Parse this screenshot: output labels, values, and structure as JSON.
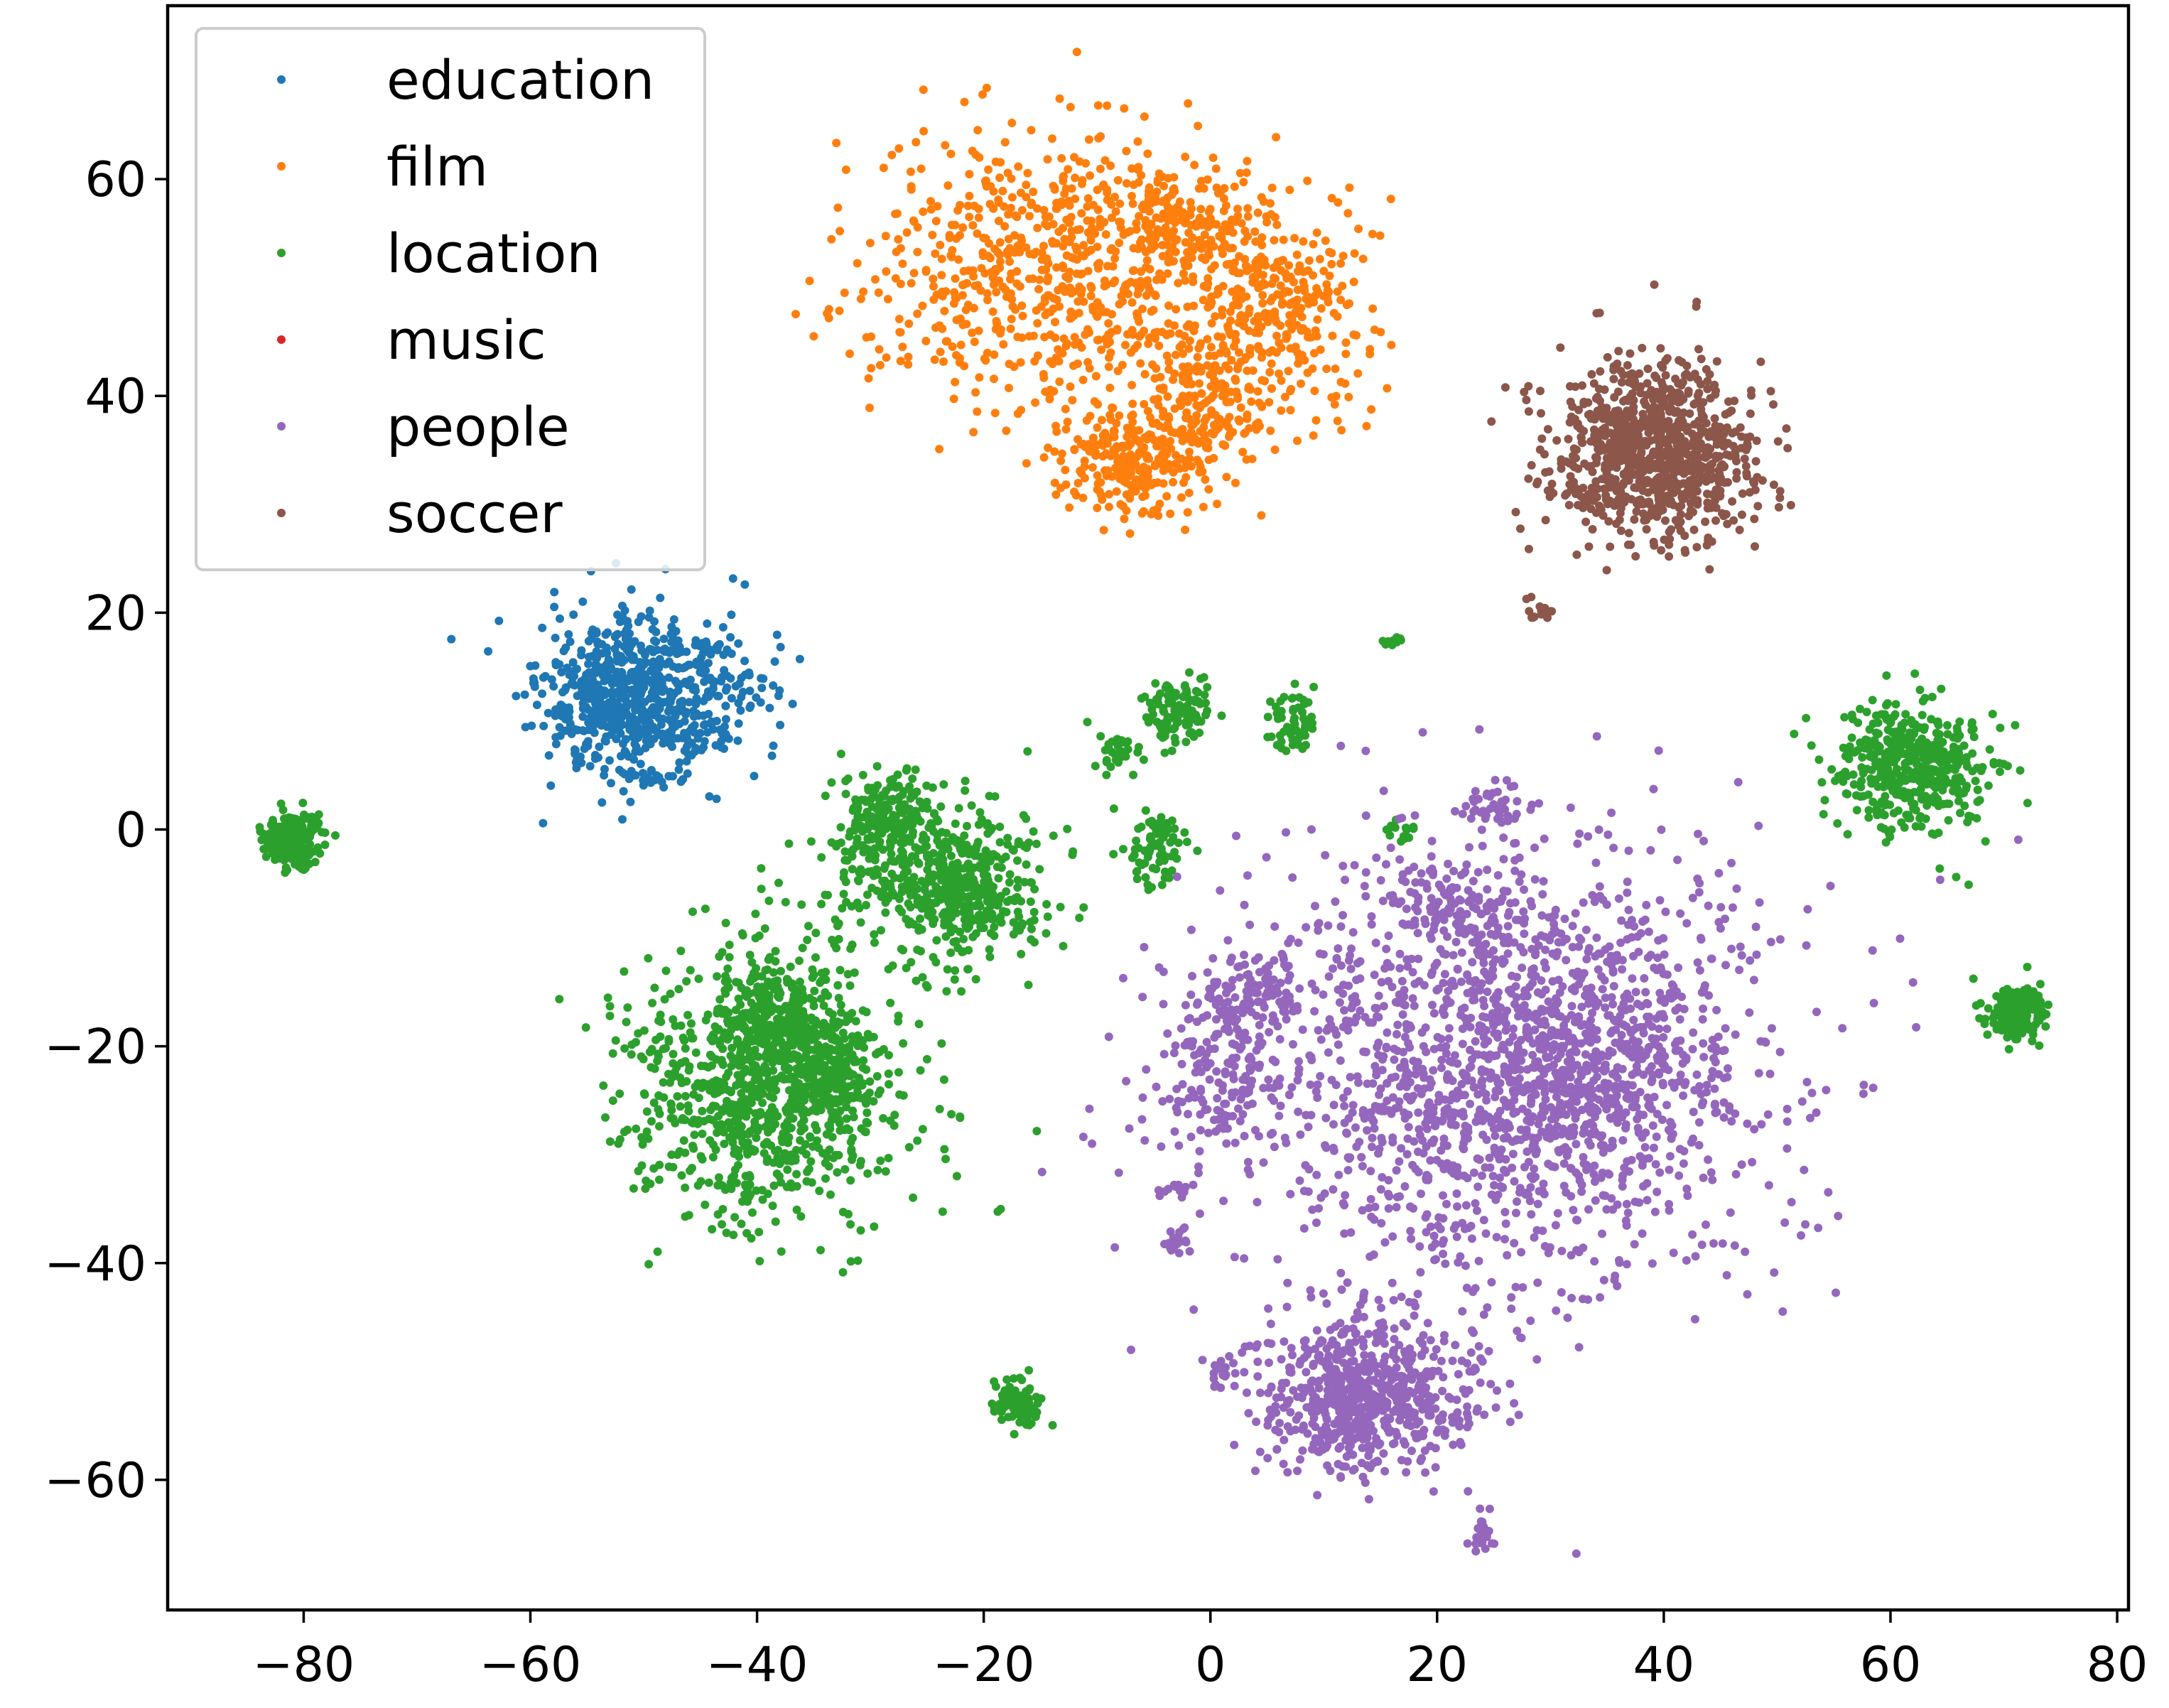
{
  "chart_data": {
    "type": "scatter",
    "title": "",
    "xlabel": "",
    "ylabel": "",
    "xlim": [
      -92,
      81
    ],
    "ylim": [
      -72,
      76
    ],
    "xticks": [
      -80,
      -60,
      -40,
      -20,
      0,
      20,
      40,
      60,
      80
    ],
    "yticks": [
      -60,
      -40,
      -20,
      0,
      20,
      40,
      60
    ],
    "xtick_labels": [
      "−80",
      "−60",
      "−40",
      "−20",
      "0",
      "20",
      "40",
      "60",
      "80"
    ],
    "ytick_labels": [
      "−60",
      "−40",
      "−20",
      "0",
      "20",
      "40",
      "60"
    ],
    "grid": false,
    "legend_position": "top-left",
    "series": [
      {
        "name": "education",
        "color": "#1f77b4",
        "clusters": [
          {
            "cx": -51,
            "cy": 12,
            "sx": 4.0,
            "sy": 3.8,
            "n": 700
          },
          {
            "cx": -42,
            "cy": 13,
            "sx": 2.5,
            "sy": 2.5,
            "n": 60
          }
        ]
      },
      {
        "name": "film",
        "color": "#ff7f0e",
        "clusters": [
          {
            "cx": -14,
            "cy": 52,
            "sx": 8.0,
            "sy": 7.0,
            "n": 700
          },
          {
            "cx": -3,
            "cy": 56,
            "sx": 3.0,
            "sy": 3.0,
            "n": 150
          },
          {
            "cx": 6,
            "cy": 49,
            "sx": 4.0,
            "sy": 5.0,
            "n": 300
          },
          {
            "cx": -7,
            "cy": 34,
            "sx": 3.0,
            "sy": 2.5,
            "n": 250
          },
          {
            "cx": 0,
            "cy": 40,
            "sx": 3.5,
            "sy": 4.0,
            "n": 200
          }
        ]
      },
      {
        "name": "location",
        "color": "#2ca02c",
        "clusters": [
          {
            "cx": -81,
            "cy": -1,
            "sx": 1.3,
            "sy": 1.3,
            "n": 200
          },
          {
            "cx": -39,
            "cy": -24,
            "sx": 6.0,
            "sy": 6.0,
            "n": 900
          },
          {
            "cx": -39,
            "cy": -17,
            "sx": 2.5,
            "sy": 2.5,
            "n": 200
          },
          {
            "cx": -34,
            "cy": -22,
            "sx": 2.0,
            "sy": 2.0,
            "n": 150
          },
          {
            "cx": -24,
            "cy": -4,
            "sx": 5.0,
            "sy": 4.0,
            "n": 400
          },
          {
            "cx": -29,
            "cy": 1,
            "sx": 2.0,
            "sy": 2.0,
            "n": 150
          },
          {
            "cx": -21,
            "cy": -6,
            "sx": 2.5,
            "sy": 2.5,
            "n": 150
          },
          {
            "cx": -17,
            "cy": -53,
            "sx": 1.1,
            "sy": 1.1,
            "n": 100
          },
          {
            "cx": -3,
            "cy": 11,
            "sx": 1.3,
            "sy": 1.3,
            "n": 120
          },
          {
            "cx": -5,
            "cy": -2,
            "sx": 1.3,
            "sy": 1.8,
            "n": 80
          },
          {
            "cx": -8,
            "cy": 7,
            "sx": 1.2,
            "sy": 1.2,
            "n": 30
          },
          {
            "cx": 7,
            "cy": 10,
            "sx": 1.2,
            "sy": 1.5,
            "n": 60
          },
          {
            "cx": 16,
            "cy": 17.5,
            "sx": 0.6,
            "sy": 0.4,
            "n": 10
          },
          {
            "cx": 17,
            "cy": 0,
            "sx": 0.8,
            "sy": 0.6,
            "n": 15
          },
          {
            "cx": 62,
            "cy": 6,
            "sx": 3.5,
            "sy": 3.0,
            "n": 450
          },
          {
            "cx": 71,
            "cy": -17,
            "sx": 1.2,
            "sy": 1.2,
            "n": 180
          }
        ]
      },
      {
        "name": "music",
        "color": "#d62728",
        "clusters": []
      },
      {
        "name": "people",
        "color": "#9467bd",
        "clusters": [
          {
            "cx": 25,
            "cy": -22,
            "sx": 12.0,
            "sy": 10.0,
            "n": 1700
          },
          {
            "cx": 34,
            "cy": -22,
            "sx": 4.0,
            "sy": 4.0,
            "n": 250
          },
          {
            "cx": 22,
            "cy": -8,
            "sx": 3.0,
            "sy": 2.5,
            "n": 120
          },
          {
            "cx": 1,
            "cy": -21,
            "sx": 2.5,
            "sy": 3.5,
            "n": 150
          },
          {
            "cx": 4,
            "cy": -15,
            "sx": 2.0,
            "sy": 2.0,
            "n": 80
          },
          {
            "cx": 14,
            "cy": -52,
            "sx": 5.0,
            "sy": 3.5,
            "n": 600
          },
          {
            "cx": 12,
            "cy": -55,
            "sx": 2.0,
            "sy": 2.0,
            "n": 100
          },
          {
            "cx": 25,
            "cy": 2,
            "sx": 1.5,
            "sy": 1.2,
            "n": 40
          },
          {
            "cx": 24,
            "cy": -65,
            "sx": 0.6,
            "sy": 0.8,
            "n": 25
          },
          {
            "cx": -3,
            "cy": -38,
            "sx": 0.8,
            "sy": 0.6,
            "n": 20
          },
          {
            "cx": -3,
            "cy": -33,
            "sx": 0.8,
            "sy": 0.6,
            "n": 15
          },
          {
            "cx": 1,
            "cy": -50,
            "sx": 0.8,
            "sy": 0.8,
            "n": 15
          }
        ]
      },
      {
        "name": "soccer",
        "color": "#8c564b",
        "clusters": [
          {
            "cx": 39,
            "cy": 35,
            "sx": 4.5,
            "sy": 4.0,
            "n": 900
          },
          {
            "cx": 29,
            "cy": 20,
            "sx": 0.6,
            "sy": 0.6,
            "n": 15
          }
        ]
      }
    ]
  }
}
